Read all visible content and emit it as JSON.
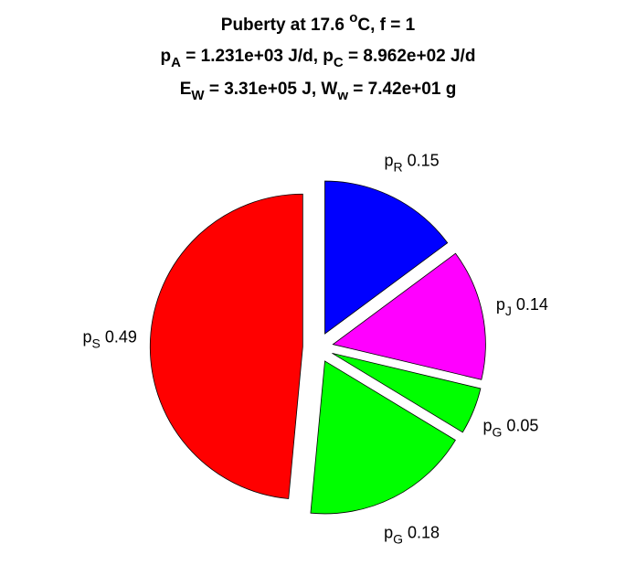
{
  "chart_data": {
    "type": "pie",
    "title": [
      [
        {
          "text": "Puberty at 17.6 "
        },
        {
          "text": "o",
          "shift": "sup"
        },
        {
          "text": "C, f = 1"
        }
      ],
      [
        {
          "text": "p"
        },
        {
          "text": "A",
          "shift": "sub"
        },
        {
          "text": " = 1.231e+03 J/d,  p"
        },
        {
          "text": "C",
          "shift": "sub"
        },
        {
          "text": " = 8.962e+02 J/d"
        }
      ],
      [
        {
          "text": "E"
        },
        {
          "text": "W",
          "shift": "sub"
        },
        {
          "text": " = 3.31e+05 J, W"
        },
        {
          "text": "w",
          "shift": "sub"
        },
        {
          "text": " = 7.42e+01 g"
        }
      ]
    ],
    "categories": [
      {
        "text": "p",
        "sub": "R"
      },
      {
        "text": "p",
        "sub": "J"
      },
      {
        "text": "p",
        "sub": "G"
      },
      {
        "text": "p",
        "sub": "G"
      },
      {
        "text": "p",
        "sub": "S"
      }
    ],
    "values": [
      0.15,
      0.14,
      0.05,
      0.18,
      0.49
    ],
    "colors": [
      "#0000ff",
      "#ff00ff",
      "#00ff00",
      "#00ff00",
      "#ff0000"
    ]
  }
}
